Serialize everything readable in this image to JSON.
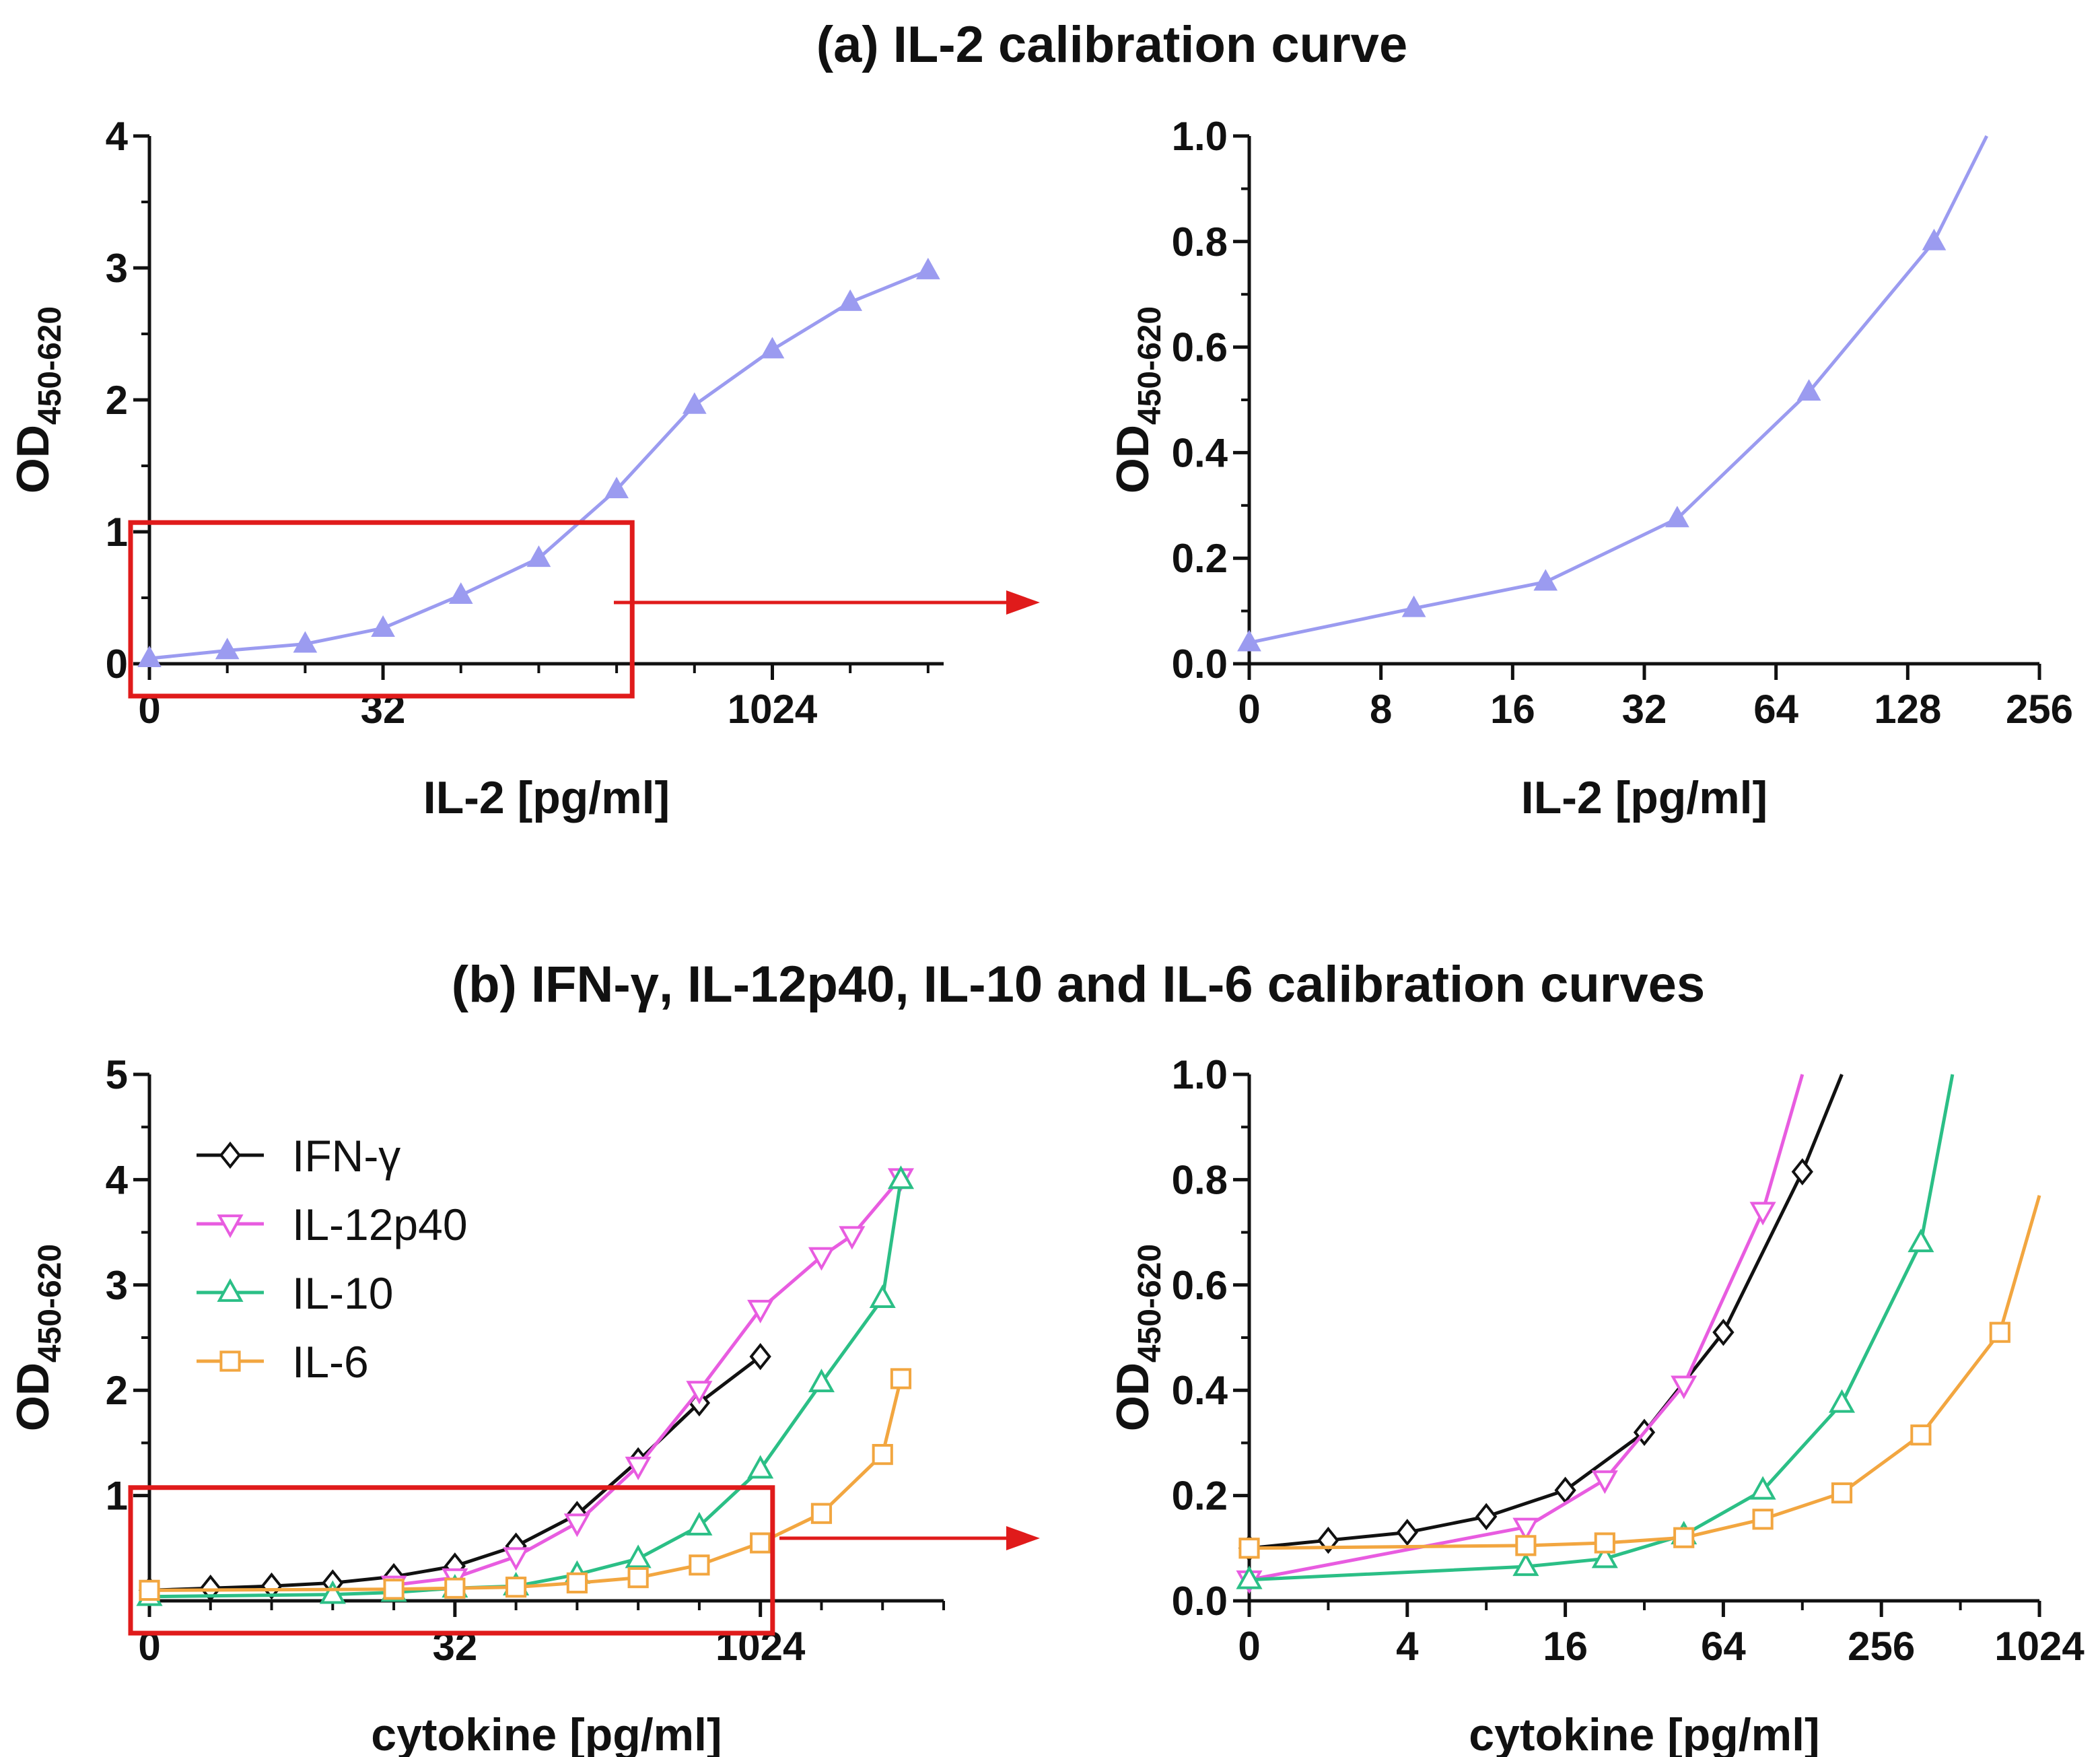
{
  "figure": {
    "title_a": "(a) IL-2 calibration curve",
    "title_b": "(b) IFN-γ,  IL-12p40, IL-10 and  IL-6 calibration curves"
  },
  "colors": {
    "IL-2": "#9b9bf0",
    "IFN-γ": "#111111",
    "IL-12p40": "#e85ce0",
    "IL-10": "#2bbf86",
    "IL-6": "#f2a640",
    "highlight_box": "#e01b1b",
    "axis": "#111111"
  },
  "chart_data": [
    {
      "id": "a_full",
      "type": "line",
      "title": "(a) IL-2 calibration curve",
      "xlabel": "IL-2 [pg/ml]",
      "ylabel_main": "OD",
      "ylabel_sub": "450-620",
      "x_scale": "log2 (step index)",
      "xlim": [
        0,
        10.2
      ],
      "ylim": [
        0,
        4
      ],
      "x_ticks": [
        {
          "at": 0,
          "label": "0"
        },
        {
          "at": 3,
          "label": "32"
        },
        {
          "at": 8,
          "label": "1024"
        }
      ],
      "y_ticks": [
        "0",
        "1",
        "2",
        "3",
        "4"
      ],
      "y_tick_values": [
        0,
        1,
        2,
        3,
        4
      ],
      "zoom_box": {
        "x": [
          0,
          6.2
        ],
        "y": [
          0,
          1.05
        ]
      },
      "series": [
        {
          "name": "IL-2",
          "marker": "triangle-up-filled",
          "x": [
            0,
            1,
            2,
            3,
            4,
            5,
            6,
            7,
            8,
            9,
            10
          ],
          "values": [
            0.04,
            0.1,
            0.15,
            0.27,
            0.52,
            0.8,
            1.32,
            1.96,
            2.38,
            2.74,
            2.98
          ]
        }
      ]
    },
    {
      "id": "a_zoom",
      "type": "line",
      "xlabel": "IL-2 [pg/ml]",
      "ylabel_main": "OD",
      "ylabel_sub": "450-620",
      "x_scale": "log2 (step index)",
      "xlim": [
        0,
        6
      ],
      "ylim": [
        0,
        1.0
      ],
      "x_ticks": [
        {
          "at": 0,
          "label": "0"
        },
        {
          "at": 1,
          "label": "8"
        },
        {
          "at": 2,
          "label": "16"
        },
        {
          "at": 3,
          "label": "32"
        },
        {
          "at": 4,
          "label": "64"
        },
        {
          "at": 5,
          "label": "128"
        },
        {
          "at": 6,
          "label": "256"
        }
      ],
      "y_ticks": [
        "0.0",
        "0.2",
        "0.4",
        "0.6",
        "0.8",
        "1.0"
      ],
      "y_tick_values": [
        0,
        0.2,
        0.4,
        0.6,
        0.8,
        1.0
      ],
      "series": [
        {
          "name": "IL-2",
          "marker": "triangle-up-filled",
          "x": [
            0,
            1.25,
            2.25,
            3.25,
            4.25,
            5.2
          ],
          "values": [
            0.04,
            0.105,
            0.155,
            0.275,
            0.515,
            0.8
          ],
          "extend_to": [
            5.6,
            1.0
          ]
        }
      ]
    },
    {
      "id": "b_full",
      "type": "line",
      "title": "(b) IFN-γ,  IL-12p40, IL-10 and  IL-6 calibration curves",
      "xlabel": "cytokine [pg/ml]",
      "ylabel_main": "OD",
      "ylabel_sub": "450-620",
      "x_scale": "log2 (step index)",
      "xlim": [
        0,
        13
      ],
      "ylim": [
        0,
        5
      ],
      "x_ticks": [
        {
          "at": 0,
          "label": "0"
        },
        {
          "at": 5,
          "label": "32"
        },
        {
          "at": 10,
          "label": "1024"
        }
      ],
      "y_ticks": [
        "1",
        "2",
        "3",
        "4",
        "5"
      ],
      "y_tick_values": [
        1,
        2,
        3,
        4,
        5
      ],
      "zoom_box": {
        "x": [
          0,
          10.2
        ],
        "y": [
          0,
          1.05
        ]
      },
      "legend_position": "top-left",
      "series": [
        {
          "name": "IFN-γ",
          "marker": "diamond-open",
          "x": [
            0,
            1,
            2,
            3,
            4,
            5,
            6,
            7,
            8,
            9,
            10
          ],
          "values": [
            0.1,
            0.12,
            0.14,
            0.17,
            0.23,
            0.33,
            0.52,
            0.82,
            1.33,
            1.88,
            2.32
          ]
        },
        {
          "name": "IL-12p40",
          "marker": "triangle-down-open",
          "x": [
            4,
            5,
            6,
            7,
            8,
            9,
            10,
            11,
            11.5,
            12.3
          ],
          "values": [
            0.15,
            0.22,
            0.42,
            0.74,
            1.28,
            2.0,
            2.77,
            3.27,
            3.47,
            4.02
          ]
        },
        {
          "name": "IL-10",
          "marker": "triangle-up-open",
          "x": [
            0,
            3,
            4,
            5,
            6,
            7,
            8,
            9,
            10,
            11,
            12,
            12.3
          ],
          "values": [
            0.04,
            0.06,
            0.08,
            0.12,
            0.14,
            0.25,
            0.4,
            0.71,
            1.25,
            2.07,
            2.87,
            4.0
          ]
        },
        {
          "name": "IL-6",
          "marker": "square-open",
          "x": [
            0,
            4,
            5,
            6,
            7,
            8,
            9,
            10,
            11,
            12,
            12.3
          ],
          "values": [
            0.1,
            0.11,
            0.12,
            0.13,
            0.17,
            0.22,
            0.34,
            0.55,
            0.83,
            1.39,
            2.11
          ]
        }
      ]
    },
    {
      "id": "b_zoom",
      "type": "line",
      "xlabel": "cytokine [pg/ml]",
      "ylabel_main": "OD",
      "ylabel_sub": "450-620",
      "x_scale": "log2 (step index)",
      "xlim": [
        0,
        10
      ],
      "ylim": [
        0,
        1.0
      ],
      "x_ticks": [
        {
          "at": 0,
          "label": "0"
        },
        {
          "at": 2,
          "label": "4"
        },
        {
          "at": 4,
          "label": "16"
        },
        {
          "at": 6,
          "label": "64"
        },
        {
          "at": 8,
          "label": "256"
        },
        {
          "at": 10,
          "label": "1024"
        }
      ],
      "y_ticks": [
        "0.0",
        "0.2",
        "0.4",
        "0.6",
        "0.8",
        "1.0"
      ],
      "y_tick_values": [
        0,
        0.2,
        0.4,
        0.6,
        0.8,
        1.0
      ],
      "series": [
        {
          "name": "IFN-γ",
          "marker": "diamond-open",
          "x": [
            0,
            1,
            2,
            3,
            4,
            5,
            6,
            7
          ],
          "values": [
            0.1,
            0.115,
            0.13,
            0.16,
            0.21,
            0.32,
            0.51,
            0.815
          ],
          "extend_to": [
            7.5,
            1.0
          ]
        },
        {
          "name": "IL-12p40",
          "marker": "triangle-down-open",
          "x": [
            0,
            3.5,
            4.5,
            5.5,
            6.5
          ],
          "values": [
            0.04,
            0.14,
            0.23,
            0.41,
            0.74
          ],
          "extend_to": [
            7.0,
            1.0
          ]
        },
        {
          "name": "IL-10",
          "marker": "triangle-up-open",
          "x": [
            0,
            3.5,
            4.5,
            5.5,
            6.5,
            7.5,
            8.5
          ],
          "values": [
            0.04,
            0.065,
            0.08,
            0.125,
            0.21,
            0.375,
            0.68
          ],
          "extend_to": [
            8.9,
            1.0
          ]
        },
        {
          "name": "IL-6",
          "marker": "square-open",
          "x": [
            0,
            3.5,
            4.5,
            5.5,
            6.5,
            7.5,
            8.5,
            9.5
          ],
          "values": [
            0.1,
            0.105,
            0.11,
            0.12,
            0.155,
            0.205,
            0.315,
            0.51
          ],
          "extend_to": [
            10.0,
            0.77
          ]
        }
      ]
    }
  ]
}
